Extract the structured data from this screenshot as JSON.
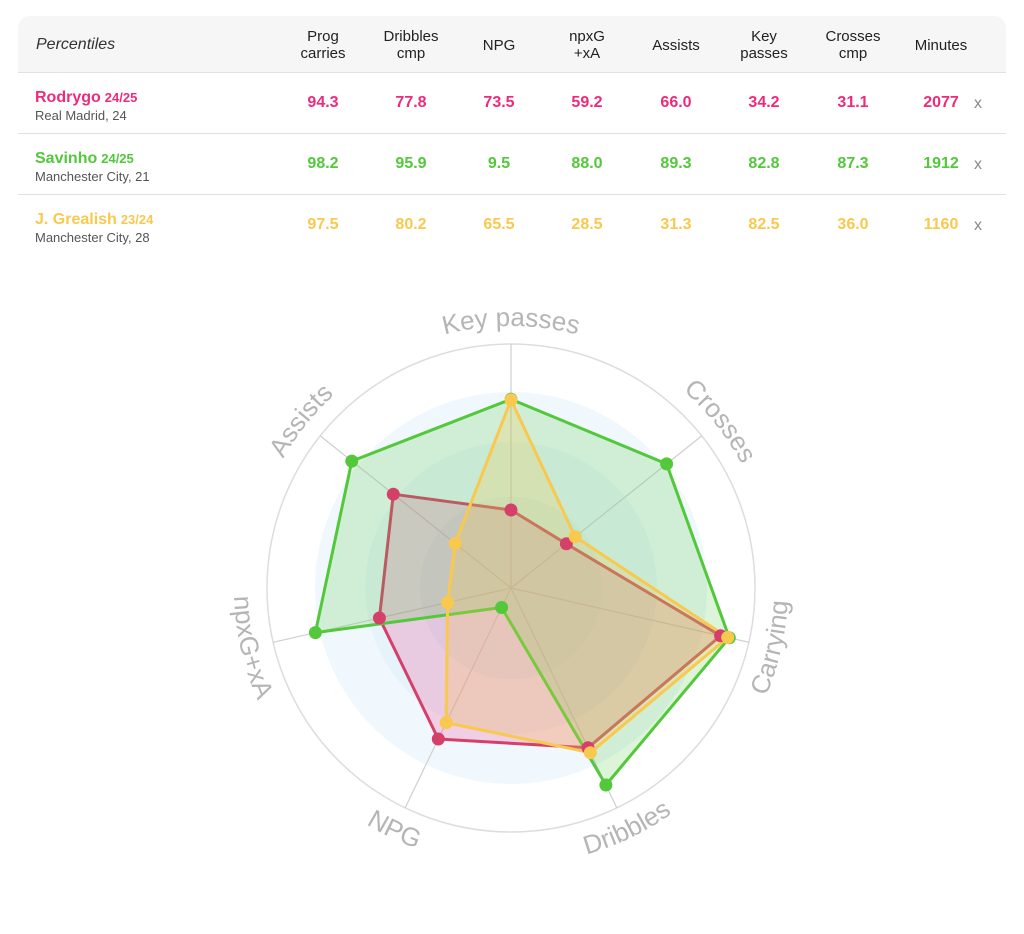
{
  "table": {
    "title": "Percentiles",
    "columns": [
      {
        "line1": "Prog",
        "line2": "carries"
      },
      {
        "line1": "Dribbles",
        "line2": "cmp"
      },
      {
        "line1": "NPG",
        "line2": ""
      },
      {
        "line1": "npxG",
        "line2": "+xA"
      },
      {
        "line1": "Assists",
        "line2": ""
      },
      {
        "line1": "Key",
        "line2": "passes"
      },
      {
        "line1": "Crosses",
        "line2": "cmp"
      },
      {
        "line1": "Minutes",
        "line2": ""
      }
    ],
    "remove_label": "x",
    "players": [
      {
        "name": "Rodrygo",
        "season": "24/25",
        "sub": "Real Madrid, 24",
        "color": "#ee2a7b",
        "values": [
          "94.3",
          "77.8",
          "73.5",
          "59.2",
          "66.0",
          "34.2",
          "31.1",
          "2077"
        ]
      },
      {
        "name": "Savinho",
        "season": "24/25",
        "sub": "Manchester City, 21",
        "color": "#52c83a",
        "values": [
          "98.2",
          "95.9",
          "9.5",
          "88.0",
          "89.3",
          "82.8",
          "87.3",
          "1912"
        ]
      },
      {
        "name": "J. Grealish",
        "season": "23/24",
        "sub": "Manchester City, 28",
        "color": "#f9c84e",
        "values": [
          "97.5",
          "80.2",
          "65.5",
          "28.5",
          "31.3",
          "82.5",
          "36.0",
          "1160"
        ]
      }
    ]
  },
  "chart_data": {
    "type": "radar",
    "axes": [
      "Key passes",
      "Crosses",
      "Carrying",
      "Dribbles",
      "NPG",
      "npxG+xA",
      "Assists"
    ],
    "range": [
      0,
      100
    ],
    "series": [
      {
        "name": "Rodrygo",
        "color": "#d4406a",
        "values": [
          34.2,
          31.1,
          94.3,
          77.8,
          73.5,
          59.2,
          66.0
        ]
      },
      {
        "name": "Savinho",
        "color": "#52c83a",
        "values": [
          82.8,
          87.3,
          98.2,
          95.9,
          9.5,
          88.0,
          89.3
        ]
      },
      {
        "name": "J. Grealish",
        "color": "#f9c84e",
        "values": [
          82.5,
          36.0,
          97.5,
          80.2,
          65.5,
          28.5,
          31.3
        ]
      }
    ]
  }
}
